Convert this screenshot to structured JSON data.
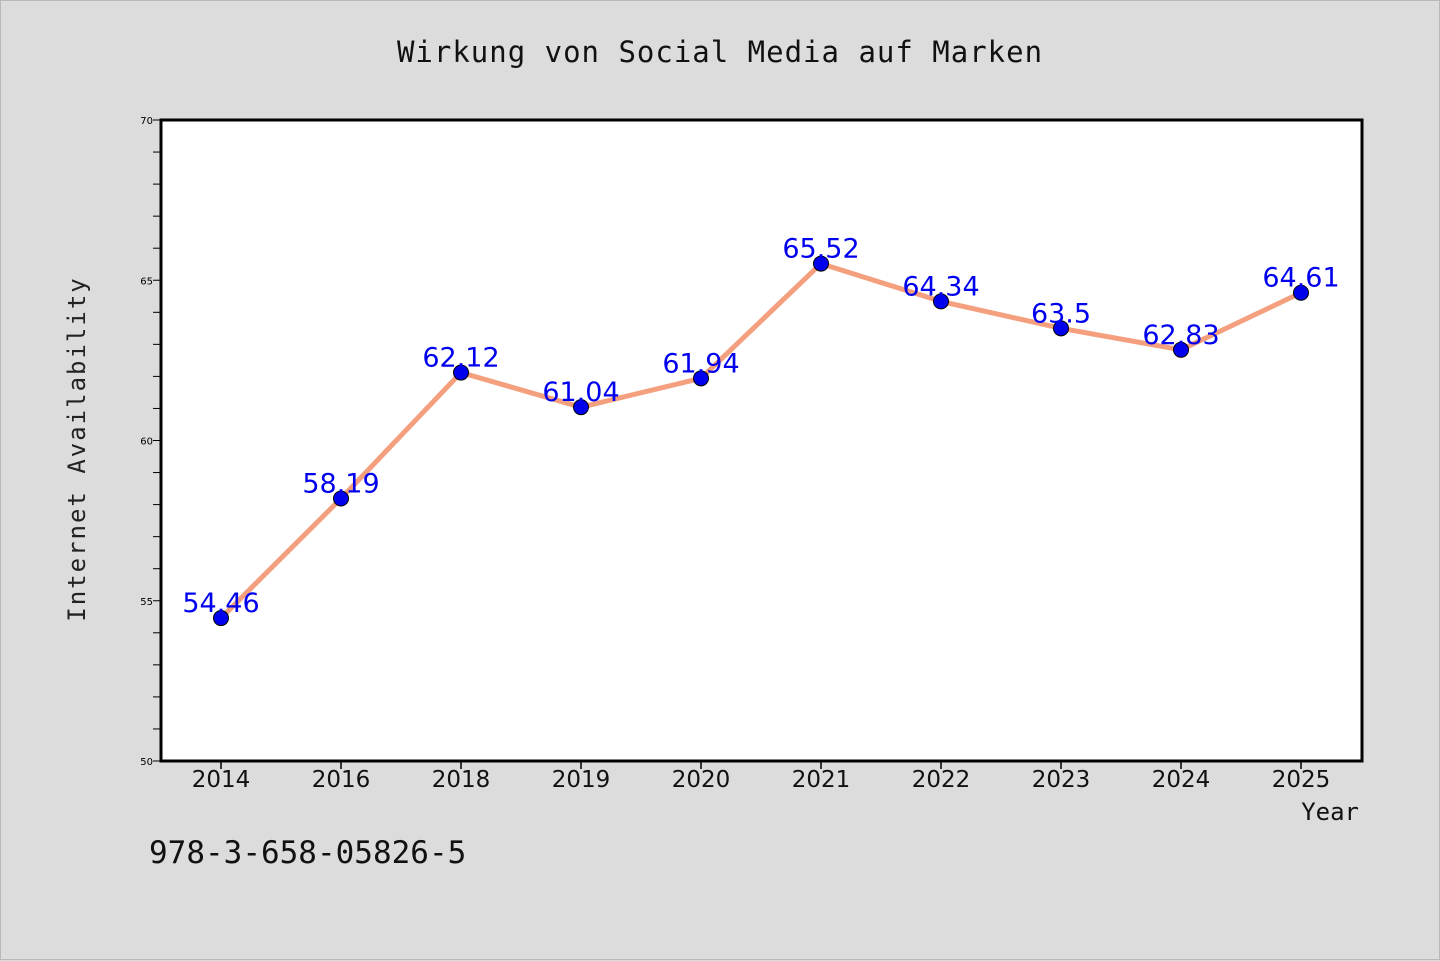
{
  "chart_data": {
    "type": "line",
    "title": "Wirkung von Social Media auf Marken",
    "xlabel": "Year",
    "ylabel": "Internet Availability",
    "categories": [
      "2014",
      "2016",
      "2018",
      "2019",
      "2020",
      "2021",
      "2022",
      "2023",
      "2024",
      "2025"
    ],
    "series": [
      {
        "values": [
          54.46,
          58.19,
          62.12,
          61.04,
          61.94,
          65.52,
          64.34,
          63.5,
          62.83,
          64.61
        ]
      }
    ],
    "data_labels": [
      "54.46",
      "58.19",
      "62.12",
      "61.04",
      "61.94",
      "65.52",
      "64.34",
      "63.5",
      "62.83",
      "64.61"
    ],
    "ylim": [
      50,
      70
    ],
    "y_ticks": [
      50,
      55,
      60,
      65,
      70
    ],
    "y_minor_step": 1,
    "grid": false,
    "line_color": "#f4a07e",
    "marker_color": "#0000ee",
    "label_color": "#0000ee"
  },
  "footer": {
    "isbn": "978-3-658-05826-5"
  }
}
